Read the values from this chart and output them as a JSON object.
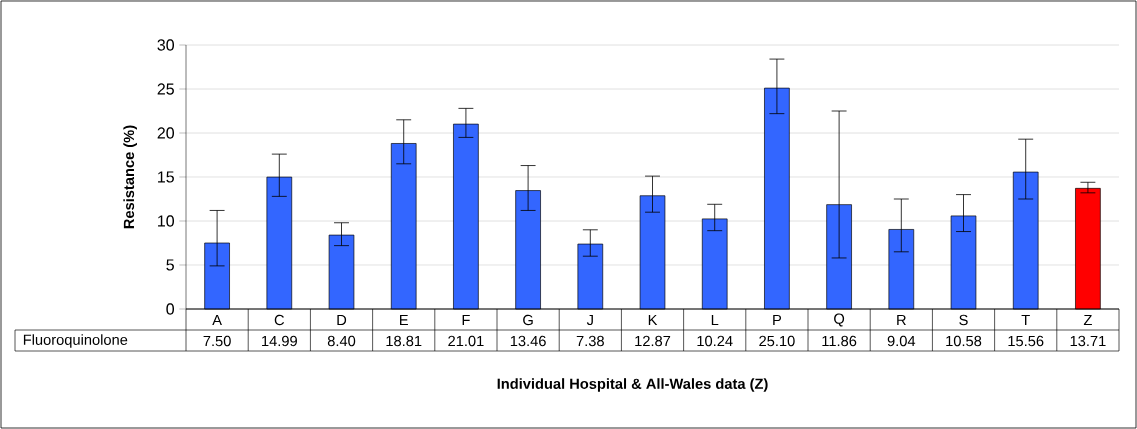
{
  "chart_data": {
    "type": "bar",
    "xlabel": "Individual Hospital & All-Wales data (Z)",
    "ylabel": "Resistance (%)",
    "categories": [
      "A",
      "C",
      "D",
      "E",
      "F",
      "G",
      "J",
      "K",
      "L",
      "P",
      "Q",
      "R",
      "S",
      "T",
      "Z"
    ],
    "series": [
      {
        "name": "Fluoroquinolone",
        "values": [
          7.5,
          14.99,
          8.4,
          18.81,
          21.01,
          13.46,
          7.38,
          12.87,
          10.24,
          25.1,
          11.86,
          9.04,
          10.58,
          15.56,
          13.71
        ],
        "value_labels": [
          "7.50",
          "14.99",
          "8.40",
          "18.81",
          "21.01",
          "13.46",
          "7.38",
          "12.87",
          "10.24",
          "25.10",
          "11.86",
          "9.04",
          "10.58",
          "15.56",
          "13.71"
        ],
        "colors": [
          "#3366ff",
          "#3366ff",
          "#3366ff",
          "#3366ff",
          "#3366ff",
          "#3366ff",
          "#3366ff",
          "#3366ff",
          "#3366ff",
          "#3366ff",
          "#3366ff",
          "#3366ff",
          "#3366ff",
          "#3366ff",
          "#ff0000"
        ],
        "errors": [
          [
            4.9,
            11.2
          ],
          [
            12.8,
            17.6
          ],
          [
            7.2,
            9.8
          ],
          [
            16.5,
            21.5
          ],
          [
            19.5,
            22.8
          ],
          [
            11.2,
            16.3
          ],
          [
            6.0,
            9.0
          ],
          [
            11.0,
            15.1
          ],
          [
            8.9,
            11.9
          ],
          [
            22.2,
            28.4
          ],
          [
            5.8,
            22.5
          ],
          [
            6.5,
            12.5
          ],
          [
            8.8,
            13.0
          ],
          [
            12.5,
            19.3
          ],
          [
            13.2,
            14.4
          ]
        ]
      }
    ],
    "ylim": [
      0,
      30
    ],
    "yticks": [
      0,
      5,
      10,
      15,
      20,
      25,
      30
    ],
    "grid": "y"
  }
}
